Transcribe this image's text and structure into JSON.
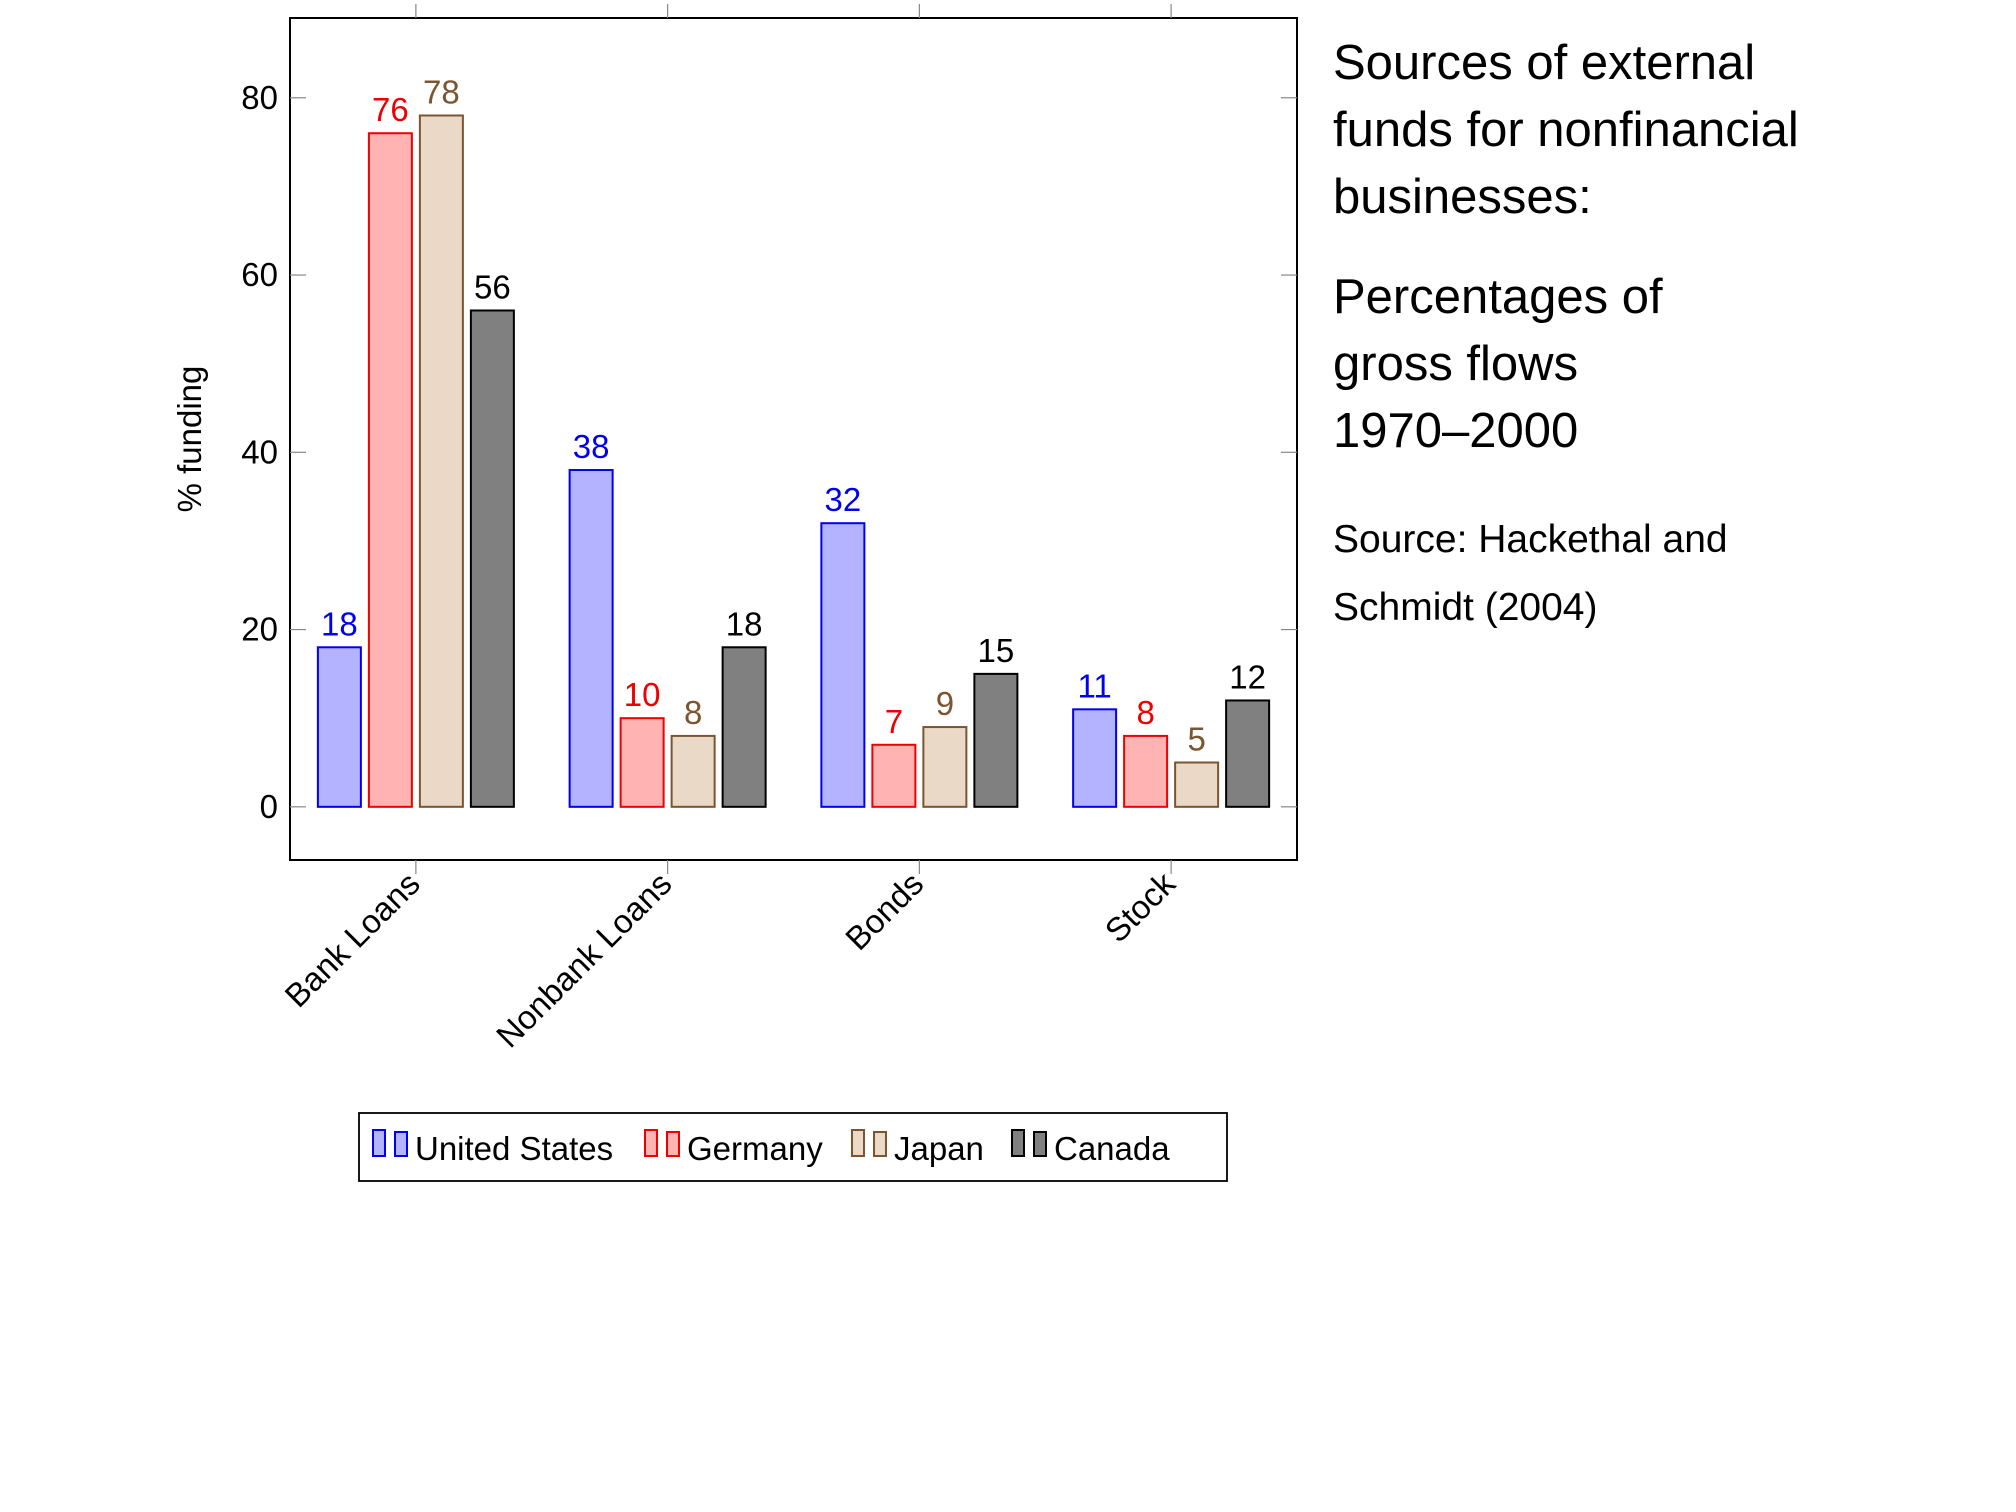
{
  "side_text": {
    "title_line1": "Sources of external",
    "title_line2": "funds for nonfinancial",
    "title_line3": "businesses:",
    "sub_line1": "Percentages of",
    "sub_line2": "gross flows",
    "sub_line3": "1970–2000",
    "source_line1": "Source:  Hackethal and",
    "source_line2": "Schmidt (2004)"
  },
  "chart_data": {
    "type": "bar",
    "title": "",
    "xlabel": "",
    "ylabel": "% funding",
    "categories": [
      "Bank Loans",
      "Nonbank Loans",
      "Bonds",
      "Stock"
    ],
    "ylim": [
      -6,
      89
    ],
    "yticks": [
      0,
      20,
      40,
      60,
      80
    ],
    "grid": false,
    "legend_position": "bottom",
    "series": [
      {
        "name": "United States",
        "values": [
          18,
          38,
          32,
          11
        ],
        "fill": "#b3b3ff",
        "stroke": "#0000ee",
        "label_color": "#0000ee"
      },
      {
        "name": "Germany",
        "values": [
          76,
          10,
          7,
          8
        ],
        "fill": "#ffb3b3",
        "stroke": "#ee0000",
        "label_color": "#ee0000"
      },
      {
        "name": "Japan",
        "values": [
          78,
          8,
          9,
          5
        ],
        "fill": "#ead9c6",
        "stroke": "#7b5530",
        "label_color": "#7b5530"
      },
      {
        "name": "Canada",
        "values": [
          56,
          18,
          15,
          12
        ],
        "fill": "#808080",
        "stroke": "#000000",
        "label_color": "#000000"
      }
    ]
  }
}
